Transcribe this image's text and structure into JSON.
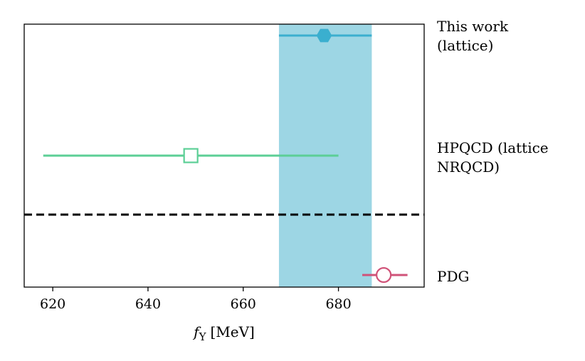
{
  "chart_data": {
    "type": "errorbar",
    "title": "",
    "xlabel": "fΥ [MeV]",
    "xlabel_symbol": "f",
    "xlabel_subscript": "Υ",
    "xlabel_unit": "[MeV]",
    "xlim": [
      614,
      698
    ],
    "xticks": [
      620,
      640,
      660,
      680
    ],
    "band": {
      "x_min": 667.5,
      "x_max": 687,
      "color": "#9dd6e4"
    },
    "separator": {
      "position": "between HPQCD and PDG",
      "style": "dashed",
      "color": "#000000"
    },
    "points": [
      {
        "id": "this-work",
        "label_lines": [
          "This work",
          "(lattice)"
        ],
        "value": 677,
        "err_low": 667.5,
        "err_high": 687,
        "marker": "hexagon",
        "filled": true,
        "color": "#3aafcf"
      },
      {
        "id": "hpqcd",
        "label_lines": [
          "HPQCD (lattice",
          "NRQCD)"
        ],
        "value": 649,
        "err_low": 618,
        "err_high": 680,
        "marker": "square",
        "filled": false,
        "color": "#5ccf96"
      },
      {
        "id": "pdg",
        "label_lines": [
          "PDG"
        ],
        "value": 689.5,
        "err_low": 685,
        "err_high": 694.5,
        "marker": "circle",
        "filled": false,
        "color": "#d05278"
      }
    ]
  }
}
